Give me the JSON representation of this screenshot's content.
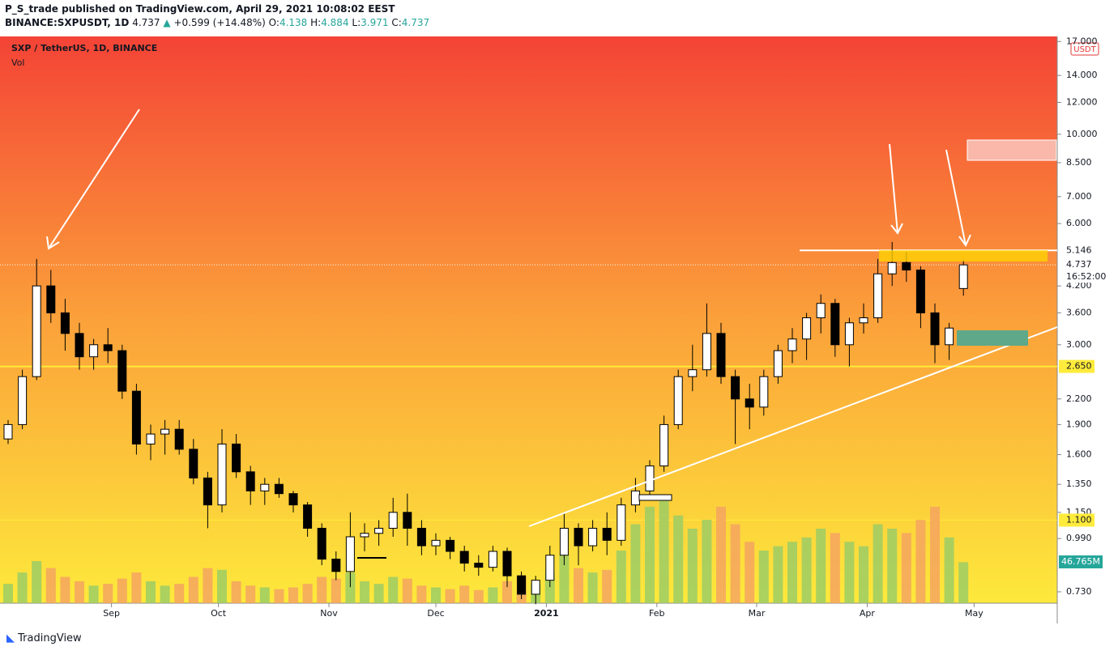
{
  "header": {
    "publisher": "P_S_trade published on TradingView.com, April 29, 2021 10:08:02 EEST",
    "symbol": "BINANCE:SXPUSDT, 1D",
    "last": "4.737",
    "change": "+0.599 (+14.48%)",
    "ohlc": [
      {
        "key": "O:",
        "val": "4.138"
      },
      {
        "key": "H:",
        "val": "4.884"
      },
      {
        "key": "L:",
        "val": "3.971"
      },
      {
        "key": "C:",
        "val": "4.737"
      }
    ]
  },
  "footer": "TradingView",
  "chart_data": {
    "type": "candlestick",
    "legend": [
      "SXP / TetherUS, 1D, BINANCE",
      "Vol"
    ],
    "currency": "USDT",
    "log_scale": true,
    "ylim": [
      0.684,
      17.5
    ],
    "yticks": [
      {
        "value": 17,
        "label": "17.000"
      },
      {
        "value": 14,
        "label": "14.000"
      },
      {
        "value": 12,
        "label": "12.000"
      },
      {
        "value": 10,
        "label": "10.000"
      },
      {
        "value": 8.5,
        "label": "8.500"
      },
      {
        "value": 7,
        "label": "7.000"
      },
      {
        "value": 6,
        "label": "6.000"
      },
      {
        "value": 4.2,
        "label": "4.200"
      },
      {
        "value": 3.6,
        "label": "3.600"
      },
      {
        "value": 3,
        "label": "3.000"
      },
      {
        "value": 2.2,
        "label": "2.200"
      },
      {
        "value": 1.9,
        "label": "1.900"
      },
      {
        "value": 1.6,
        "label": "1.600"
      },
      {
        "value": 1.35,
        "label": "1.350"
      },
      {
        "value": 1.15,
        "label": "1.150"
      },
      {
        "value": 0.99,
        "label": "0.990"
      },
      {
        "value": 0.73,
        "label": "0.730"
      }
    ],
    "levels": [
      {
        "value": 5.146,
        "label": "5.146",
        "color": "#ffffff"
      },
      {
        "value": 2.65,
        "label": "2.650",
        "color": "#ffeb3b"
      },
      {
        "value": 1.1,
        "label": "1.100",
        "color": "#ffeb3b"
      }
    ],
    "last_price": {
      "value": 4.737,
      "label": "4.737"
    },
    "countdown": "16:52:00",
    "xticks": [
      {
        "value": 7.25,
        "label": "Sep"
      },
      {
        "value": 14.75,
        "label": "Oct"
      },
      {
        "value": 22.5,
        "label": "Nov"
      },
      {
        "value": 30,
        "label": "Dec"
      },
      {
        "value": 37.75,
        "label": "2021"
      },
      {
        "value": 45.5,
        "label": "Feb"
      },
      {
        "value": 52.5,
        "label": "Mar"
      },
      {
        "value": 60.25,
        "label": "Apr"
      },
      {
        "value": 67.75,
        "label": "May"
      }
    ],
    "up_color": "#ffffff",
    "down_color": "#000000",
    "vol_up_color": "#9ccc65",
    "vol_down_color": "#f4a460",
    "open": [
      1.75,
      1.9,
      2.5,
      4.2,
      3.6,
      3.2,
      2.8,
      3.0,
      2.9,
      2.3,
      1.7,
      1.8,
      1.85,
      1.65,
      1.4,
      1.2,
      1.7,
      1.45,
      1.3,
      1.35,
      1.28,
      1.2,
      1.05,
      0.88,
      0.82,
      1.0,
      1.02,
      1.05,
      1.15,
      1.05,
      0.95,
      0.98,
      0.92,
      0.86,
      0.84,
      0.92,
      0.8,
      0.72,
      0.78,
      0.9,
      1.05,
      0.95,
      1.05,
      0.98,
      1.2,
      1.3,
      1.5,
      1.9,
      2.5,
      2.6,
      3.2,
      2.5,
      2.2,
      2.1,
      2.5,
      2.9,
      3.1,
      3.5,
      3.8,
      3.0,
      3.4,
      3.5,
      4.5,
      4.8,
      4.6,
      3.6,
      3.0,
      4.138
    ],
    "high": [
      1.95,
      2.6,
      4.9,
      4.6,
      3.9,
      3.4,
      3.1,
      3.3,
      3.0,
      2.4,
      1.9,
      1.95,
      1.95,
      1.75,
      1.45,
      1.85,
      1.8,
      1.5,
      1.4,
      1.4,
      1.3,
      1.22,
      1.08,
      0.92,
      1.15,
      1.08,
      1.1,
      1.25,
      1.28,
      1.1,
      1.02,
      1.0,
      0.95,
      0.9,
      0.95,
      0.94,
      0.82,
      0.8,
      0.95,
      1.15,
      1.08,
      1.1,
      1.15,
      1.25,
      1.4,
      1.55,
      2.0,
      2.6,
      3.0,
      3.8,
      3.4,
      2.6,
      2.4,
      2.6,
      3.0,
      3.3,
      3.6,
      4.0,
      3.9,
      3.5,
      3.8,
      4.9,
      5.4,
      5.1,
      4.7,
      3.8,
      3.4,
      4.884
    ],
    "low": [
      1.7,
      1.85,
      2.45,
      3.4,
      2.9,
      2.6,
      2.6,
      2.7,
      2.2,
      1.6,
      1.55,
      1.6,
      1.6,
      1.35,
      1.05,
      1.15,
      1.4,
      1.2,
      1.2,
      1.25,
      1.15,
      1.0,
      0.85,
      0.78,
      0.75,
      0.92,
      0.95,
      1.0,
      0.95,
      0.9,
      0.9,
      0.88,
      0.82,
      0.8,
      0.82,
      0.75,
      0.7,
      0.68,
      0.75,
      0.85,
      0.85,
      0.92,
      0.9,
      0.95,
      1.15,
      1.25,
      1.45,
      1.85,
      2.3,
      2.5,
      2.4,
      1.7,
      1.85,
      2.0,
      2.4,
      2.7,
      2.75,
      3.2,
      2.8,
      2.65,
      3.2,
      3.4,
      4.2,
      4.3,
      3.3,
      2.7,
      2.75,
      3.971
    ],
    "close": [
      1.9,
      2.5,
      4.2,
      3.6,
      3.2,
      2.8,
      3.0,
      2.9,
      2.3,
      1.7,
      1.8,
      1.85,
      1.65,
      1.4,
      1.2,
      1.7,
      1.45,
      1.3,
      1.35,
      1.28,
      1.2,
      1.05,
      0.88,
      0.82,
      1.0,
      1.02,
      1.05,
      1.15,
      1.05,
      0.95,
      0.98,
      0.92,
      0.86,
      0.84,
      0.92,
      0.8,
      0.72,
      0.78,
      0.9,
      1.05,
      0.95,
      1.05,
      0.98,
      1.2,
      1.3,
      1.5,
      1.9,
      2.5,
      2.6,
      3.2,
      2.5,
      2.2,
      2.1,
      2.5,
      2.9,
      3.1,
      3.5,
      3.8,
      3.0,
      3.4,
      3.5,
      4.5,
      4.8,
      4.6,
      3.6,
      3.0,
      3.3,
      4.737
    ],
    "volume": [
      22,
      35,
      48,
      40,
      30,
      25,
      20,
      22,
      28,
      35,
      25,
      20,
      22,
      30,
      40,
      38,
      25,
      20,
      18,
      16,
      18,
      22,
      30,
      28,
      35,
      25,
      22,
      30,
      28,
      20,
      18,
      16,
      20,
      15,
      18,
      25,
      30,
      22,
      35,
      55,
      40,
      35,
      38,
      60,
      90,
      110,
      120,
      100,
      85,
      95,
      110,
      90,
      70,
      60,
      65,
      70,
      75,
      85,
      80,
      70,
      65,
      90,
      85,
      80,
      95,
      110,
      75,
      46.765
    ],
    "volume_label": {
      "value": 46.765,
      "label": "46.765M"
    }
  }
}
